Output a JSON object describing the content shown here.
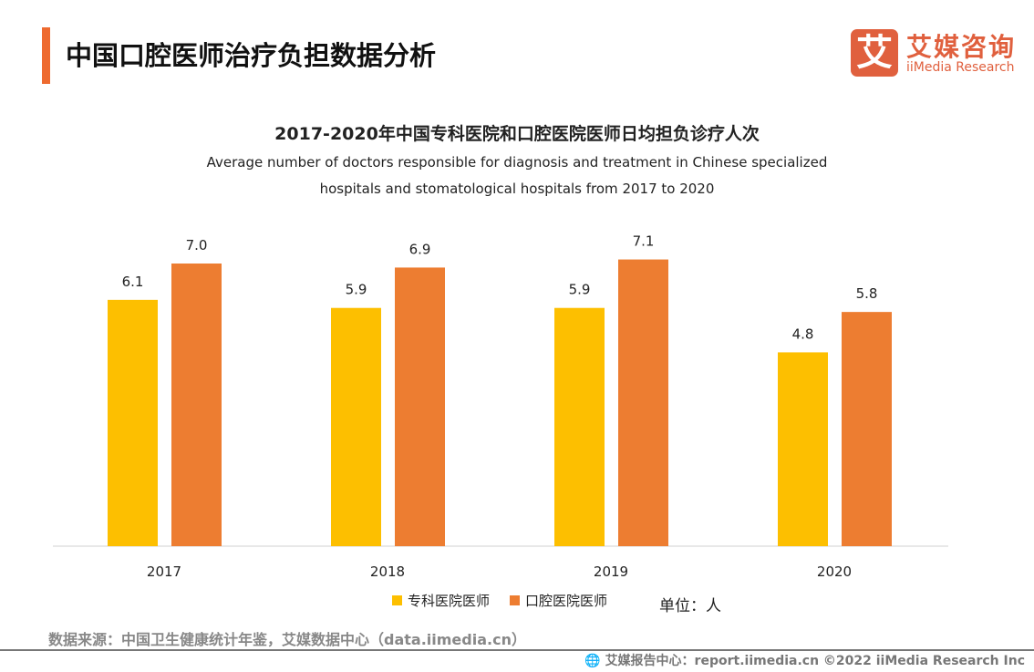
{
  "header": {
    "title": "中国口腔医师治疗负担数据分析"
  },
  "logo": {
    "glyph": "艾",
    "cn": "艾媒咨询",
    "en": "iiMedia Research"
  },
  "chart_data": {
    "type": "bar",
    "title": "2017-2020年中国专科医院和口腔医院医师日均担负诊疗人次",
    "subtitle": [
      "Average number of doctors responsible for diagnosis and treatment in Chinese specialized",
      "hospitals and stomatological hospitals from 2017 to 2020"
    ],
    "categories": [
      "2017",
      "2018",
      "2019",
      "2020"
    ],
    "series": [
      {
        "name": "专科医院医师",
        "color": "#fdbf00",
        "values": [
          6.1,
          5.9,
          5.9,
          4.8
        ]
      },
      {
        "name": "口腔医院医师",
        "color": "#ed7d31",
        "values": [
          7.0,
          6.9,
          7.1,
          5.8
        ]
      }
    ],
    "ylim": [
      0,
      8
    ],
    "grid": false,
    "legend": "bottom",
    "unit": "单位：人"
  },
  "source": "数据来源：中国卫生健康统计年鉴，艾媒数据中心（data.iimedia.cn）",
  "footer": "艾媒报告中心：report.iimedia.cn   ©2022  iiMedia Research  Inc"
}
